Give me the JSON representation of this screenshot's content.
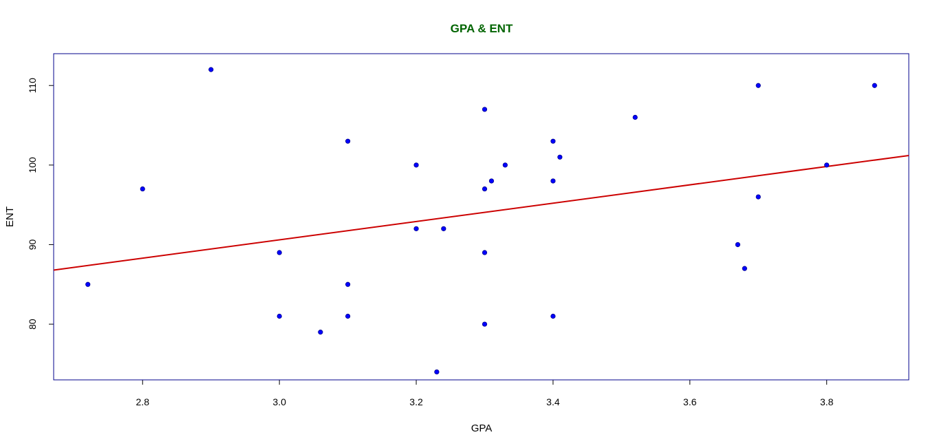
{
  "chart_data": {
    "type": "scatter",
    "title": "GPA & ENT",
    "xlabel": "GPA",
    "ylabel": "ENT",
    "xlim": [
      2.67,
      3.92
    ],
    "ylim": [
      73,
      114
    ],
    "xticks": [
      "2.8",
      "3.0",
      "3.2",
      "3.4",
      "3.6",
      "3.8"
    ],
    "yticks": [
      "80",
      "90",
      "100",
      "110"
    ],
    "grid": false,
    "points": [
      {
        "x": 2.72,
        "y": 85
      },
      {
        "x": 2.8,
        "y": 97
      },
      {
        "x": 2.9,
        "y": 112
      },
      {
        "x": 3.0,
        "y": 89
      },
      {
        "x": 3.0,
        "y": 81
      },
      {
        "x": 3.06,
        "y": 79
      },
      {
        "x": 3.1,
        "y": 103
      },
      {
        "x": 3.1,
        "y": 85
      },
      {
        "x": 3.1,
        "y": 81
      },
      {
        "x": 3.2,
        "y": 100
      },
      {
        "x": 3.2,
        "y": 92
      },
      {
        "x": 3.23,
        "y": 74
      },
      {
        "x": 3.24,
        "y": 92
      },
      {
        "x": 3.3,
        "y": 107
      },
      {
        "x": 3.3,
        "y": 97
      },
      {
        "x": 3.3,
        "y": 89
      },
      {
        "x": 3.3,
        "y": 80
      },
      {
        "x": 3.31,
        "y": 98
      },
      {
        "x": 3.33,
        "y": 100
      },
      {
        "x": 3.4,
        "y": 103
      },
      {
        "x": 3.4,
        "y": 98
      },
      {
        "x": 3.4,
        "y": 81
      },
      {
        "x": 3.41,
        "y": 101
      },
      {
        "x": 3.52,
        "y": 106
      },
      {
        "x": 3.67,
        "y": 90
      },
      {
        "x": 3.68,
        "y": 87
      },
      {
        "x": 3.7,
        "y": 110
      },
      {
        "x": 3.7,
        "y": 96
      },
      {
        "x": 3.8,
        "y": 100
      },
      {
        "x": 3.87,
        "y": 110
      }
    ],
    "regression_line": {
      "x": [
        2.67,
        3.92
      ],
      "y": [
        86.8,
        101.2
      ]
    },
    "colors": {
      "title": "#006400",
      "points": "#0000ff",
      "point_outline": "#00008b",
      "regression_line": "#cc0000",
      "plot_border": "#00008b",
      "axis": "#000000"
    }
  }
}
